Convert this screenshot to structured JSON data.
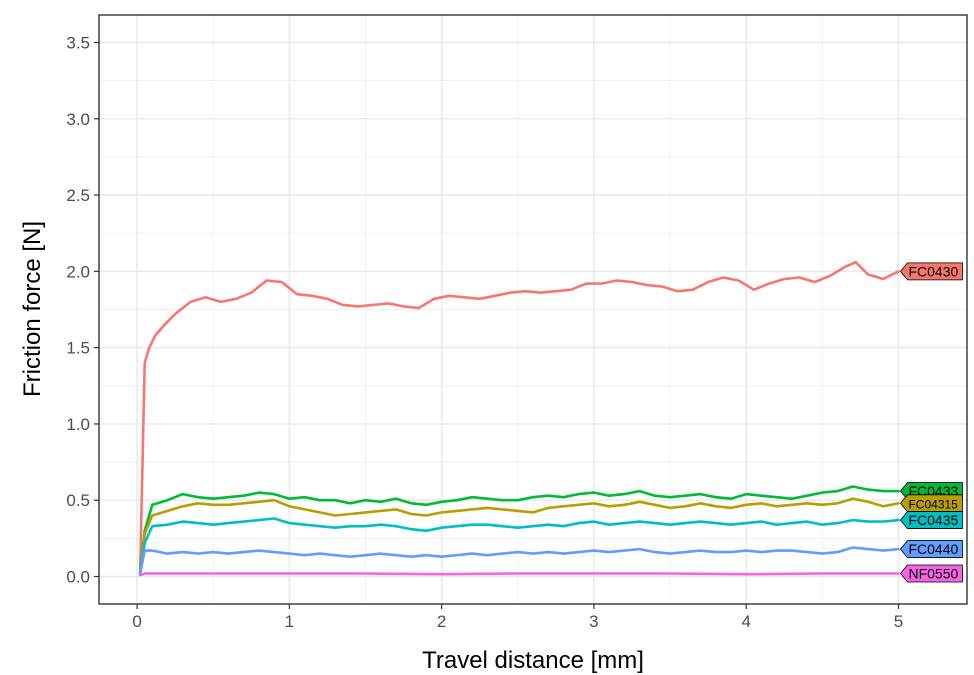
{
  "chart_data": {
    "type": "line",
    "title": "",
    "xlabel": "Travel distance [mm]",
    "ylabel": "Friction force [N]",
    "xlim": [
      -0.25,
      5.45
    ],
    "ylim": [
      -0.18,
      3.68
    ],
    "x_ticks": [
      0,
      1,
      2,
      3,
      4,
      5
    ],
    "x_tick_labels": [
      "0",
      "1",
      "2",
      "3",
      "4",
      "5"
    ],
    "y_ticks": [
      0.0,
      0.5,
      1.0,
      1.5,
      2.0,
      2.5,
      3.0,
      3.5
    ],
    "y_tick_labels": [
      "0.0",
      "0.5",
      "1.0",
      "1.5",
      "2.0",
      "2.5",
      "3.0",
      "3.5"
    ],
    "grid": true,
    "legend": "direct labels at line ends (right)",
    "series": [
      {
        "name": "FC0430",
        "color": "#F8766D",
        "label_small": false,
        "x": [
          0.02,
          0.05,
          0.08,
          0.12,
          0.18,
          0.25,
          0.35,
          0.45,
          0.55,
          0.65,
          0.75,
          0.85,
          0.95,
          1.05,
          1.15,
          1.25,
          1.35,
          1.45,
          1.55,
          1.65,
          1.75,
          1.85,
          1.95,
          2.05,
          2.15,
          2.25,
          2.35,
          2.45,
          2.55,
          2.65,
          2.75,
          2.85,
          2.95,
          3.05,
          3.15,
          3.25,
          3.35,
          3.45,
          3.55,
          3.65,
          3.75,
          3.85,
          3.95,
          4.05,
          4.15,
          4.25,
          4.35,
          4.45,
          4.55,
          4.65,
          4.72,
          4.8,
          4.9,
          5.0
        ],
        "y": [
          0.02,
          1.4,
          1.5,
          1.58,
          1.65,
          1.72,
          1.8,
          1.83,
          1.8,
          1.82,
          1.86,
          1.94,
          1.93,
          1.85,
          1.84,
          1.82,
          1.78,
          1.77,
          1.78,
          1.79,
          1.77,
          1.76,
          1.82,
          1.84,
          1.83,
          1.82,
          1.84,
          1.86,
          1.87,
          1.86,
          1.87,
          1.88,
          1.92,
          1.92,
          1.94,
          1.93,
          1.91,
          1.9,
          1.87,
          1.88,
          1.93,
          1.96,
          1.94,
          1.88,
          1.92,
          1.95,
          1.96,
          1.93,
          1.97,
          2.03,
          2.06,
          1.98,
          1.95,
          2.0
        ]
      },
      {
        "name": "FC0433",
        "color": "#00BA38",
        "label_small": false,
        "x": [
          0.02,
          0.05,
          0.1,
          0.2,
          0.3,
          0.4,
          0.5,
          0.6,
          0.7,
          0.8,
          0.9,
          1.0,
          1.1,
          1.2,
          1.3,
          1.4,
          1.5,
          1.6,
          1.7,
          1.8,
          1.9,
          2.0,
          2.1,
          2.2,
          2.3,
          2.4,
          2.5,
          2.6,
          2.7,
          2.8,
          2.9,
          3.0,
          3.1,
          3.2,
          3.3,
          3.4,
          3.5,
          3.6,
          3.7,
          3.8,
          3.9,
          4.0,
          4.1,
          4.2,
          4.3,
          4.4,
          4.5,
          4.6,
          4.7,
          4.8,
          4.9,
          5.0
        ],
        "y": [
          0.02,
          0.3,
          0.47,
          0.5,
          0.54,
          0.52,
          0.51,
          0.52,
          0.53,
          0.55,
          0.54,
          0.51,
          0.52,
          0.5,
          0.5,
          0.48,
          0.5,
          0.49,
          0.51,
          0.48,
          0.47,
          0.49,
          0.5,
          0.52,
          0.51,
          0.5,
          0.5,
          0.52,
          0.53,
          0.52,
          0.54,
          0.55,
          0.53,
          0.54,
          0.56,
          0.53,
          0.52,
          0.53,
          0.54,
          0.52,
          0.51,
          0.54,
          0.53,
          0.52,
          0.51,
          0.53,
          0.55,
          0.56,
          0.59,
          0.57,
          0.56,
          0.56
        ]
      },
      {
        "name": "FC04315",
        "color": "#B79F00",
        "label_small": true,
        "x": [
          0.02,
          0.05,
          0.1,
          0.2,
          0.3,
          0.4,
          0.5,
          0.6,
          0.7,
          0.8,
          0.9,
          1.0,
          1.1,
          1.2,
          1.3,
          1.4,
          1.5,
          1.6,
          1.7,
          1.8,
          1.9,
          2.0,
          2.1,
          2.2,
          2.3,
          2.4,
          2.5,
          2.6,
          2.7,
          2.8,
          2.9,
          3.0,
          3.1,
          3.2,
          3.3,
          3.4,
          3.5,
          3.6,
          3.7,
          3.8,
          3.9,
          4.0,
          4.1,
          4.2,
          4.3,
          4.4,
          4.5,
          4.6,
          4.7,
          4.8,
          4.9,
          5.0
        ],
        "y": [
          0.02,
          0.28,
          0.4,
          0.43,
          0.46,
          0.48,
          0.47,
          0.47,
          0.48,
          0.49,
          0.5,
          0.46,
          0.44,
          0.42,
          0.4,
          0.41,
          0.42,
          0.43,
          0.44,
          0.41,
          0.4,
          0.42,
          0.43,
          0.44,
          0.45,
          0.44,
          0.43,
          0.42,
          0.45,
          0.46,
          0.47,
          0.48,
          0.46,
          0.47,
          0.49,
          0.47,
          0.45,
          0.46,
          0.48,
          0.46,
          0.45,
          0.47,
          0.48,
          0.46,
          0.47,
          0.48,
          0.47,
          0.48,
          0.51,
          0.49,
          0.46,
          0.48
        ]
      },
      {
        "name": "FC0435",
        "color": "#00BFC4",
        "label_small": false,
        "x": [
          0.02,
          0.05,
          0.1,
          0.2,
          0.3,
          0.4,
          0.5,
          0.6,
          0.7,
          0.8,
          0.9,
          1.0,
          1.1,
          1.2,
          1.3,
          1.4,
          1.5,
          1.6,
          1.7,
          1.8,
          1.9,
          2.0,
          2.1,
          2.2,
          2.3,
          2.4,
          2.5,
          2.6,
          2.7,
          2.8,
          2.9,
          3.0,
          3.1,
          3.2,
          3.3,
          3.4,
          3.5,
          3.6,
          3.7,
          3.8,
          3.9,
          4.0,
          4.1,
          4.2,
          4.3,
          4.4,
          4.5,
          4.6,
          4.7,
          4.8,
          4.9,
          5.0
        ],
        "y": [
          0.02,
          0.22,
          0.33,
          0.34,
          0.36,
          0.35,
          0.34,
          0.35,
          0.36,
          0.37,
          0.38,
          0.35,
          0.34,
          0.33,
          0.32,
          0.33,
          0.33,
          0.34,
          0.33,
          0.31,
          0.3,
          0.32,
          0.33,
          0.34,
          0.34,
          0.33,
          0.32,
          0.33,
          0.34,
          0.33,
          0.35,
          0.36,
          0.34,
          0.35,
          0.36,
          0.35,
          0.34,
          0.35,
          0.36,
          0.35,
          0.34,
          0.35,
          0.36,
          0.34,
          0.35,
          0.36,
          0.34,
          0.35,
          0.37,
          0.36,
          0.36,
          0.37
        ]
      },
      {
        "name": "FC0440",
        "color": "#619CFF",
        "label_small": false,
        "x": [
          0.02,
          0.05,
          0.1,
          0.2,
          0.3,
          0.4,
          0.5,
          0.6,
          0.7,
          0.8,
          0.9,
          1.0,
          1.1,
          1.2,
          1.3,
          1.4,
          1.5,
          1.6,
          1.7,
          1.8,
          1.9,
          2.0,
          2.1,
          2.2,
          2.3,
          2.4,
          2.5,
          2.6,
          2.7,
          2.8,
          2.9,
          3.0,
          3.1,
          3.2,
          3.3,
          3.4,
          3.5,
          3.6,
          3.7,
          3.8,
          3.9,
          4.0,
          4.1,
          4.2,
          4.3,
          4.4,
          4.5,
          4.6,
          4.7,
          4.8,
          4.9,
          5.0
        ],
        "y": [
          0.02,
          0.17,
          0.17,
          0.15,
          0.16,
          0.15,
          0.16,
          0.15,
          0.16,
          0.17,
          0.16,
          0.15,
          0.14,
          0.15,
          0.14,
          0.13,
          0.14,
          0.15,
          0.14,
          0.13,
          0.14,
          0.13,
          0.14,
          0.15,
          0.14,
          0.15,
          0.16,
          0.15,
          0.16,
          0.15,
          0.16,
          0.17,
          0.16,
          0.17,
          0.18,
          0.16,
          0.15,
          0.16,
          0.17,
          0.16,
          0.16,
          0.17,
          0.16,
          0.17,
          0.17,
          0.16,
          0.15,
          0.16,
          0.19,
          0.18,
          0.17,
          0.18
        ]
      },
      {
        "name": "NF0550",
        "color": "#F564E3",
        "label_small": false,
        "x": [
          0.02,
          0.05,
          0.5,
          1.0,
          1.5,
          2.0,
          2.5,
          3.0,
          3.5,
          4.0,
          4.5,
          5.0
        ],
        "y": [
          0.01,
          0.02,
          0.02,
          0.02,
          0.02,
          0.015,
          0.02,
          0.02,
          0.02,
          0.015,
          0.02,
          0.02
        ]
      }
    ]
  }
}
